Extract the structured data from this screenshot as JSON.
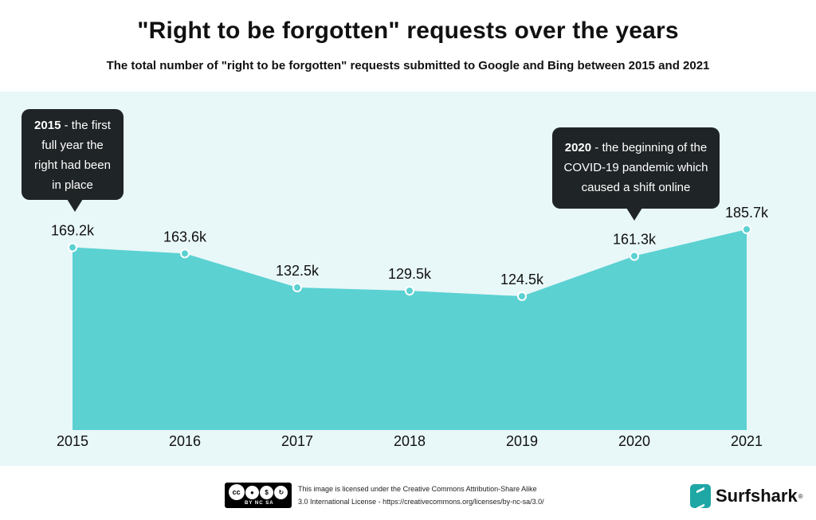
{
  "title": "\"Right to be forgotten\" requests over the years",
  "subtitle": "The total number of \"right to be forgotten\" requests submitted to Google and Bing between 2015 and 2021",
  "callouts": {
    "c2015": {
      "year": "2015",
      "text": " - the first full year the right had been in place"
    },
    "c2020": {
      "year": "2020",
      "text": " - the beginning of the COVID-19 pandemic which caused a shift online"
    }
  },
  "chart_data": {
    "type": "area",
    "title": "\"Right to be forgotten\" requests over the years",
    "subtitle": "The total number of \"right to be forgotten\" requests submitted to Google and Bing between 2015 and 2021",
    "categories": [
      "2015",
      "2016",
      "2017",
      "2018",
      "2019",
      "2020",
      "2021"
    ],
    "values": [
      169.2,
      163.6,
      132.5,
      129.5,
      124.5,
      161.3,
      185.7
    ],
    "value_labels": [
      "169.2k",
      "163.6k",
      "132.5k",
      "129.5k",
      "124.5k",
      "161.3k",
      "185.7k"
    ],
    "unit": "k",
    "ylim": [
      0,
      185.7
    ],
    "grid": false,
    "colors": {
      "fill": "#5bd1d2",
      "point": "#5bd1d2",
      "point_stroke": "#ffffff",
      "panel": "#e8f7f8"
    }
  },
  "footer": {
    "license_line1": "This image is licensed under the Creative Commons Attribution-Share Alike",
    "license_line2": "3.0 International License - https://creativecommons.org/licenses/by-nc-sa/3.0/",
    "cc_labels": "BY NC SA",
    "cc_icon": "creative-commons-by-nc-sa-icon",
    "brand": "Surfshark",
    "brand_mark": "®",
    "brand_icon": "surfshark-logo-icon"
  }
}
